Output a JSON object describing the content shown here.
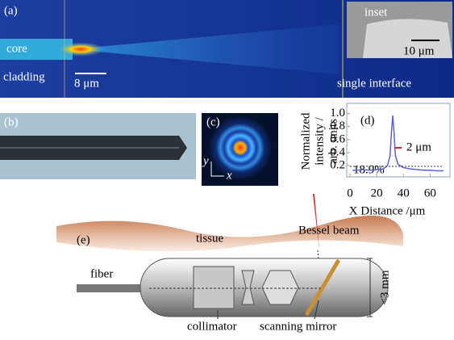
{
  "panels": {
    "a": {
      "label": "(a)",
      "core": "core",
      "cladding": "cladding",
      "scale": "8 μm",
      "inset": "inset",
      "inset_scale": "10 μm",
      "interface": "single interface"
    },
    "b": {
      "label": "(b)"
    },
    "c": {
      "label": "(c)",
      "y": "y",
      "x": "x"
    },
    "e": {
      "label": "(e)",
      "tissue": "tissue",
      "beam": "Bessel beam",
      "fiber": "fiber",
      "collimator": "collimator",
      "mirror": "scanning mirror",
      "size": "<3 mm"
    }
  },
  "chart_data": {
    "type": "line",
    "label": "(d)",
    "ylabel": [
      "Normalized",
      "intensity /",
      "arb. units"
    ],
    "xlabel": "X Distance /μm",
    "annotations": [
      "2 μm",
      "18.9%"
    ],
    "ref_level": 0.189,
    "x": [
      2,
      5,
      10,
      15,
      20,
      25,
      28,
      30,
      31,
      32,
      33,
      34,
      36,
      40,
      45,
      50,
      55,
      60,
      65,
      70
    ],
    "series": [
      {
        "color": "#5a63d6",
        "values": [
          0.13,
          0.13,
          0.14,
          0.13,
          0.14,
          0.15,
          0.2,
          0.35,
          0.7,
          0.97,
          0.7,
          0.35,
          0.22,
          0.17,
          0.15,
          0.14,
          0.13,
          0.13,
          0.12,
          0.12
        ]
      }
    ],
    "xlim": [
      0,
      70
    ],
    "ylim": [
      0.04,
      1.12
    ],
    "xticks": [
      0,
      20,
      40,
      60
    ],
    "yticks": [
      0.2,
      0.4,
      0.6,
      0.8,
      {
        "value": 1,
        "label": "1.0"
      }
    ]
  }
}
